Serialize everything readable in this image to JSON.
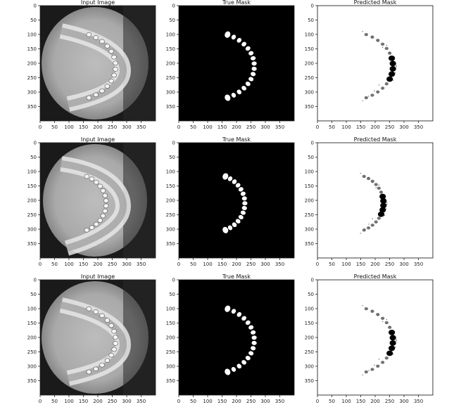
{
  "figure": {
    "panel_titles": [
      "Input Image",
      "True Mask",
      "Predicted Mask"
    ],
    "x_ticks": [
      "0",
      "50",
      "100",
      "150",
      "200",
      "250",
      "300",
      "350"
    ],
    "y_ticks": [
      "0",
      "50",
      "100",
      "150",
      "200",
      "250",
      "300",
      "350"
    ],
    "image_size": [
      400,
      400
    ],
    "rows": 3
  }
}
